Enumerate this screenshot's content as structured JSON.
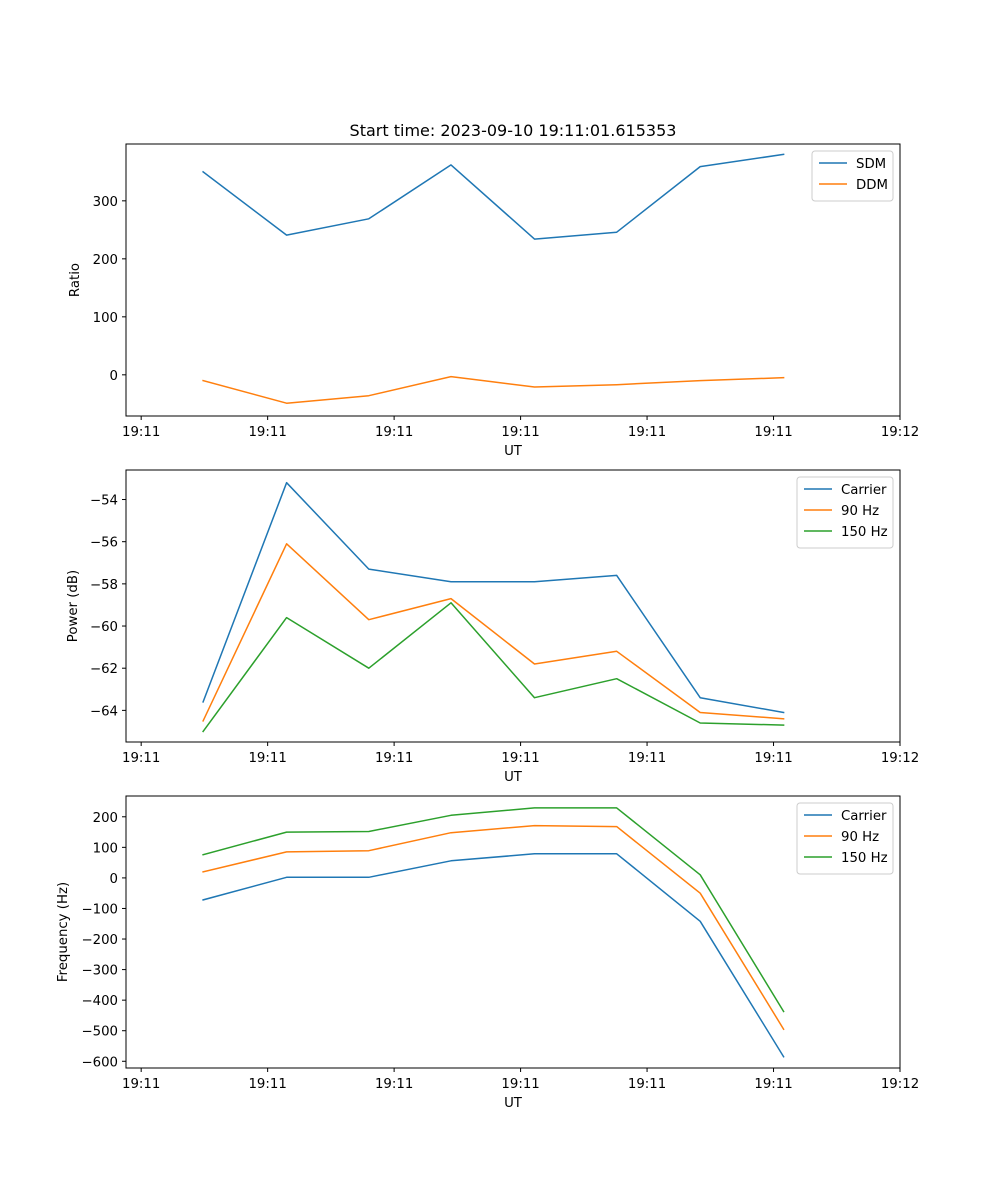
{
  "figure_title": "Start time: 2023-09-10 19:11:01.615353",
  "chart_data": [
    {
      "type": "line",
      "title": "Start time: 2023-09-10 19:11:01.615353",
      "xlabel": "UT",
      "ylabel": "Ratio",
      "x": [
        0.49,
        1.15,
        1.8,
        2.45,
        3.11,
        3.76,
        4.42,
        5.08
      ],
      "xlim": [
        -0.12,
        6.0
      ],
      "xticks": [
        0,
        1,
        2,
        3,
        4,
        5,
        6
      ],
      "xtick_labels": [
        "19:11",
        "19:11",
        "19:11",
        "19:11",
        "19:11",
        "19:11",
        "19:12"
      ],
      "ylim": [
        -71,
        398
      ],
      "yticks": [
        0,
        100,
        200,
        300
      ],
      "ytick_labels": [
        "0",
        "100",
        "200",
        "300"
      ],
      "grid": false,
      "legend_position": "top-right",
      "series": [
        {
          "name": "SDM",
          "color": "#1f77b4",
          "values": [
            350,
            241,
            269,
            362,
            234,
            246,
            359,
            380
          ]
        },
        {
          "name": "DDM",
          "color": "#ff7f0e",
          "values": [
            -10,
            -49,
            -36,
            -3,
            -21,
            -17,
            -10,
            -5
          ]
        }
      ]
    },
    {
      "type": "line",
      "title": "",
      "xlabel": "UT",
      "ylabel": "Power (dB)",
      "x": [
        0.49,
        1.15,
        1.8,
        2.45,
        3.11,
        3.76,
        4.42,
        5.08
      ],
      "xlim": [
        -0.12,
        6.0
      ],
      "xticks": [
        0,
        1,
        2,
        3,
        4,
        5,
        6
      ],
      "xtick_labels": [
        "19:11",
        "19:11",
        "19:11",
        "19:11",
        "19:11",
        "19:11",
        "19:12"
      ],
      "ylim": [
        -65.5,
        -52.6
      ],
      "yticks": [
        -64,
        -62,
        -60,
        -58,
        -56,
        -54
      ],
      "ytick_labels": [
        "−64",
        "−62",
        "−60",
        "−58",
        "−56",
        "−54"
      ],
      "grid": false,
      "legend_position": "top-right",
      "series": [
        {
          "name": "Carrier",
          "color": "#1f77b4",
          "values": [
            -63.6,
            -53.2,
            -57.3,
            -57.9,
            -57.9,
            -57.6,
            -63.4,
            -64.1
          ]
        },
        {
          "name": "90 Hz",
          "color": "#ff7f0e",
          "values": [
            -64.5,
            -56.1,
            -59.7,
            -58.7,
            -61.8,
            -61.2,
            -64.1,
            -64.4
          ]
        },
        {
          "name": "150 Hz",
          "color": "#2ca02c",
          "values": [
            -65.0,
            -59.6,
            -62.0,
            -58.9,
            -63.4,
            -62.5,
            -64.6,
            -64.7
          ]
        }
      ]
    },
    {
      "type": "line",
      "title": "",
      "xlabel": "UT",
      "ylabel": "Frequency (Hz)",
      "x": [
        0.49,
        1.15,
        1.8,
        2.45,
        3.11,
        3.76,
        4.42,
        5.08
      ],
      "xlim": [
        -0.12,
        6.0
      ],
      "xticks": [
        0,
        1,
        2,
        3,
        4,
        5,
        6
      ],
      "xtick_labels": [
        "19:11",
        "19:11",
        "19:11",
        "19:11",
        "19:11",
        "19:11",
        "19:12"
      ],
      "ylim": [
        -622,
        268
      ],
      "yticks": [
        -600,
        -500,
        -400,
        -300,
        -200,
        -100,
        0,
        100,
        200
      ],
      "ytick_labels": [
        "−600",
        "−500",
        "−400",
        "−300",
        "−200",
        "−100",
        "0",
        "100",
        "200"
      ],
      "grid": false,
      "legend_position": "top-right",
      "series": [
        {
          "name": "Carrier",
          "color": "#1f77b4",
          "values": [
            -72,
            2,
            2,
            56,
            79,
            79,
            -142,
            -585
          ]
        },
        {
          "name": "90 Hz",
          "color": "#ff7f0e",
          "values": [
            20,
            85,
            89,
            148,
            171,
            168,
            -50,
            -495
          ]
        },
        {
          "name": "150 Hz",
          "color": "#2ca02c",
          "values": [
            76,
            150,
            152,
            205,
            229,
            229,
            10,
            -437
          ]
        }
      ]
    }
  ]
}
